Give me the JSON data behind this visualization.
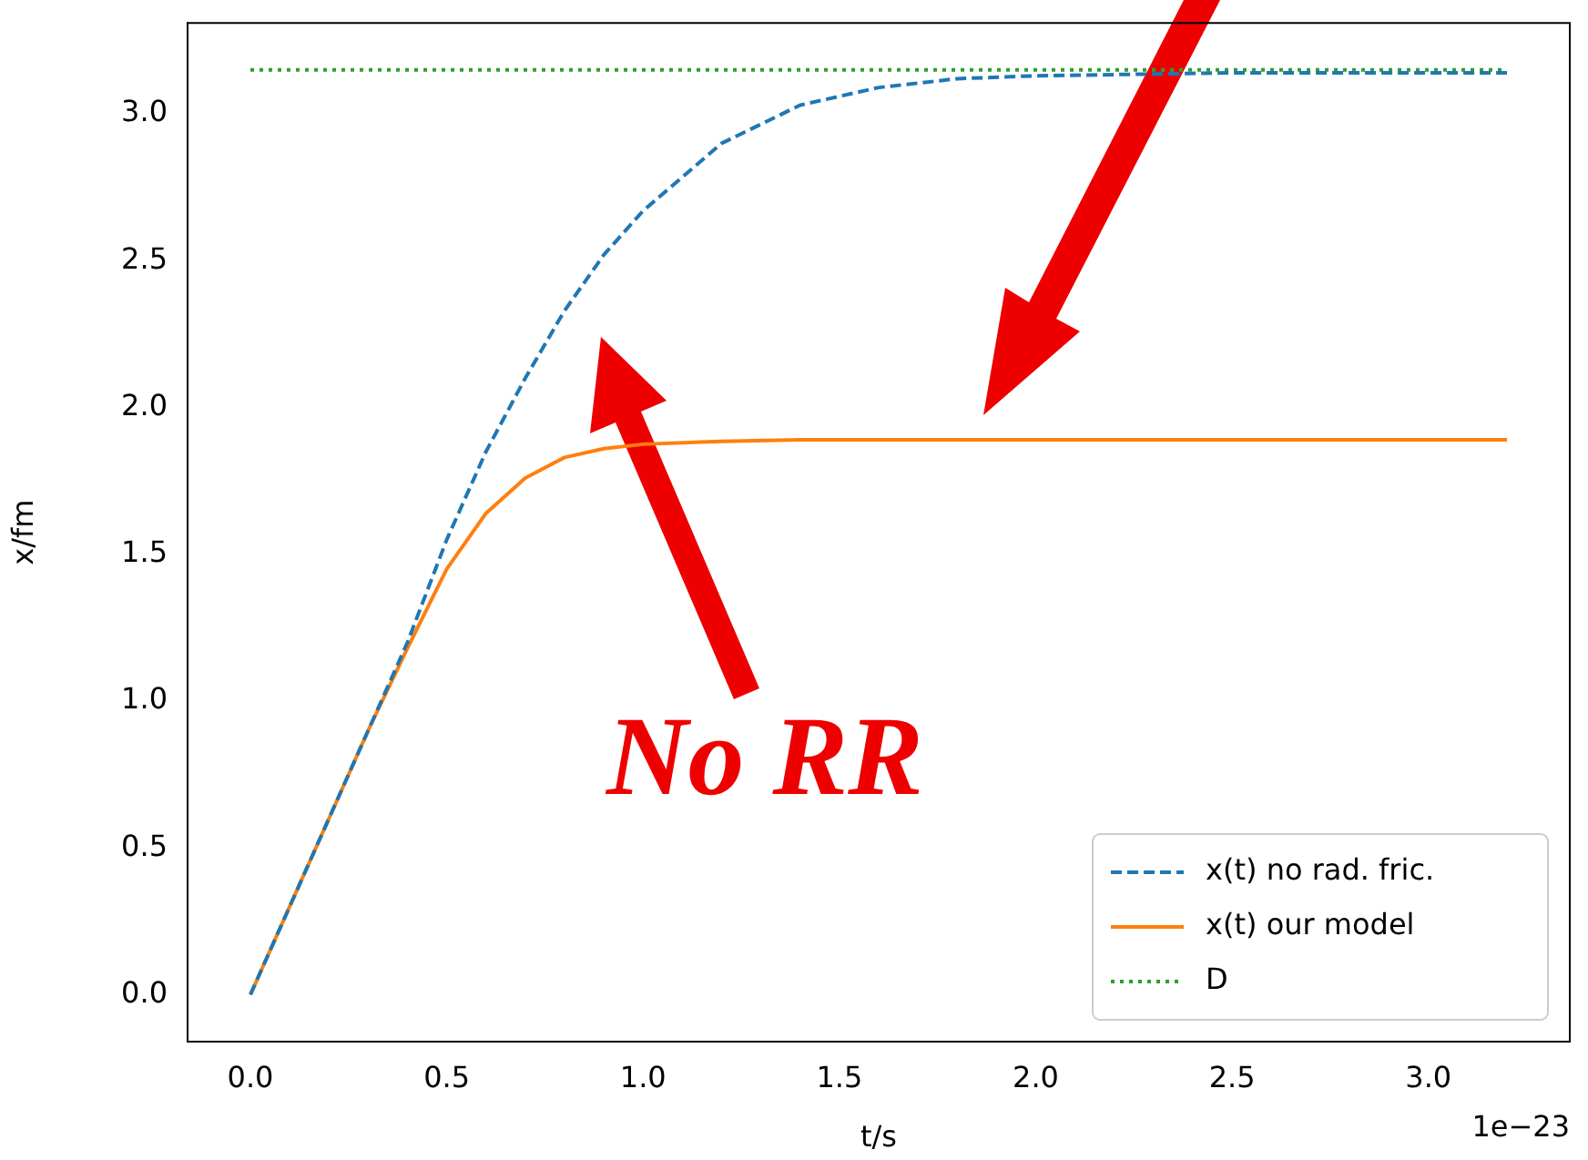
{
  "chart_data": {
    "type": "line",
    "xlabel": "t/s",
    "ylabel": "x/fm",
    "x": [
      0,
      0.1,
      0.2,
      0.3,
      0.4,
      0.5,
      0.6,
      0.7,
      0.8,
      0.9,
      1.0,
      1.2,
      1.4,
      1.6,
      1.8,
      2.0,
      2.5,
      3.2
    ],
    "series": [
      {
        "name": "x(t) no rad. fric.",
        "color": "#1f77b4",
        "line_style": "dashed",
        "values": [
          0,
          0.3,
          0.6,
          0.9,
          1.2,
          1.55,
          1.85,
          2.1,
          2.33,
          2.52,
          2.67,
          2.9,
          3.03,
          3.09,
          3.12,
          3.13,
          3.14,
          3.14
        ]
      },
      {
        "name": "x(t) our model",
        "color": "#ff7f0e",
        "line_style": "solid",
        "values": [
          0,
          0.3,
          0.6,
          0.9,
          1.18,
          1.45,
          1.64,
          1.76,
          1.83,
          1.86,
          1.875,
          1.885,
          1.89,
          1.89,
          1.89,
          1.89,
          1.89,
          1.89
        ]
      },
      {
        "name": "D",
        "color": "#2ca02c",
        "line_style": "dotted",
        "values": [
          3.15,
          3.15,
          3.15,
          3.15,
          3.15,
          3.15,
          3.15,
          3.15,
          3.15,
          3.15,
          3.15,
          3.15,
          3.15,
          3.15,
          3.15,
          3.15,
          3.15,
          3.15
        ]
      }
    ],
    "xlim": [
      -0.16,
      3.36
    ],
    "ylim": [
      -0.16,
      3.31
    ],
    "xticks": [
      {
        "value": 0,
        "label": "0.0"
      },
      {
        "value": 0.5,
        "label": "0.5"
      },
      {
        "value": 1,
        "label": "1.0"
      },
      {
        "value": 1.5,
        "label": "1.5"
      },
      {
        "value": 2,
        "label": "2.0"
      },
      {
        "value": 2.5,
        "label": "2.5"
      },
      {
        "value": 3,
        "label": "3.0"
      }
    ],
    "yticks": [
      {
        "value": 0,
        "label": "0.0"
      },
      {
        "value": 0.5,
        "label": "0.5"
      },
      {
        "value": 1,
        "label": "1.0"
      },
      {
        "value": 1.5,
        "label": "1.5"
      },
      {
        "value": 2,
        "label": "2.0"
      },
      {
        "value": 2.5,
        "label": "2.5"
      },
      {
        "value": 3,
        "label": "3.0"
      }
    ],
    "legend": "bottom right",
    "marker": "none",
    "grid": false,
    "annotations": [
      "No RR",
      "1e−23"
    ]
  }
}
